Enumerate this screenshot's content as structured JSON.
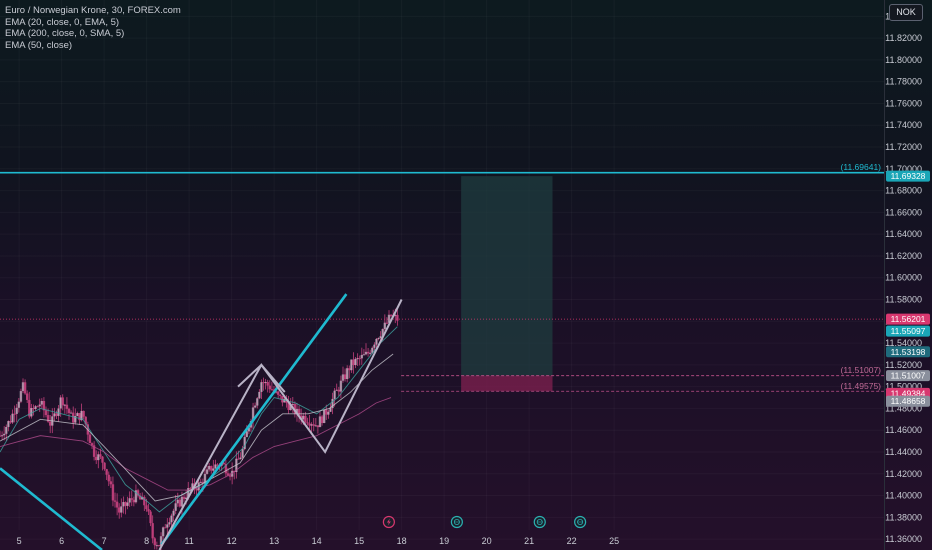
{
  "legend": {
    "title": "Euro / Norwegian Krone, 30, FOREX.com",
    "indicators": [
      "EMA (20, close, 0, EMA, 5)",
      "EMA (200, close, 0, SMA, 5)",
      "EMA (50, close)"
    ]
  },
  "currency_button": "NOK",
  "colors": {
    "candle": "#c2407c",
    "ema20": "#3fa7a3",
    "ema200": "#b04b8c",
    "ema50": "#c8c8d0",
    "drawing_line": "#1fbad0",
    "channel": "#b9b3c7",
    "target_zone": "#1f3c3f",
    "stop_zone": "#7a1f4e",
    "price_tag_pink": "#d8376f",
    "price_tag_cyan": "#1aa6b7"
  },
  "chart_data": {
    "type": "candlestick",
    "y_axis": {
      "range": [
        11.35,
        11.855
      ],
      "tick_labels": [
        "11.84000",
        "11.82000",
        "11.80000",
        "11.78000",
        "11.76000",
        "11.74000",
        "11.72000",
        "11.70000",
        "11.68000",
        "11.66000",
        "11.64000",
        "11.62000",
        "11.60000",
        "11.58000",
        "11.56000",
        "11.54000",
        "11.52000",
        "11.50000",
        "11.48000",
        "11.46000",
        "11.44000",
        "11.42000",
        "11.40000",
        "11.38000",
        "11.36000"
      ]
    },
    "x_axis": {
      "range": [
        4.55,
        25.35
      ],
      "tick_labels": [
        {
          "label": "5",
          "at": 5
        },
        {
          "label": "6",
          "at": 6
        },
        {
          "label": "7",
          "at": 7
        },
        {
          "label": "8",
          "at": 8
        },
        {
          "label": "11",
          "at": 9
        },
        {
          "label": "12",
          "at": 10
        },
        {
          "label": "13",
          "at": 11
        },
        {
          "label": "14",
          "at": 12
        },
        {
          "label": "15",
          "at": 13
        },
        {
          "label": "18",
          "at": 14
        },
        {
          "label": "19",
          "at": 15
        },
        {
          "label": "20",
          "at": 16
        },
        {
          "label": "21",
          "at": 17
        },
        {
          "label": "22",
          "at": 18
        },
        {
          "label": "25",
          "at": 19
        }
      ]
    },
    "price_path": [
      [
        4.55,
        11.455
      ],
      [
        4.8,
        11.47
      ],
      [
        5.0,
        11.49
      ],
      [
        5.1,
        11.5
      ],
      [
        5.25,
        11.475
      ],
      [
        5.5,
        11.485
      ],
      [
        5.75,
        11.465
      ],
      [
        6.0,
        11.49
      ],
      [
        6.25,
        11.47
      ],
      [
        6.5,
        11.475
      ],
      [
        6.75,
        11.44
      ],
      [
        7.0,
        11.43
      ],
      [
        7.2,
        11.4
      ],
      [
        7.35,
        11.385
      ],
      [
        7.6,
        11.395
      ],
      [
        7.75,
        11.4
      ],
      [
        8.0,
        11.39
      ],
      [
        8.15,
        11.36
      ],
      [
        8.3,
        11.355
      ],
      [
        8.45,
        11.375
      ],
      [
        8.7,
        11.39
      ],
      [
        9.0,
        11.405
      ],
      [
        9.25,
        11.41
      ],
      [
        9.5,
        11.425
      ],
      [
        9.75,
        11.43
      ],
      [
        10.0,
        11.42
      ],
      [
        10.25,
        11.44
      ],
      [
        10.5,
        11.48
      ],
      [
        10.7,
        11.505
      ],
      [
        10.9,
        11.5
      ],
      [
        11.1,
        11.49
      ],
      [
        11.3,
        11.485
      ],
      [
        11.55,
        11.475
      ],
      [
        11.8,
        11.47
      ],
      [
        12.0,
        11.465
      ],
      [
        12.2,
        11.475
      ],
      [
        12.4,
        11.49
      ],
      [
        12.6,
        11.505
      ],
      [
        12.8,
        11.52
      ],
      [
        13.0,
        11.525
      ],
      [
        13.2,
        11.53
      ],
      [
        13.4,
        11.545
      ],
      [
        13.6,
        11.555
      ],
      [
        13.75,
        11.565
      ],
      [
        13.9,
        11.562
      ]
    ],
    "series": [
      {
        "name": "EMA (20, close, 0, EMA, 5)",
        "points": [
          [
            4.55,
            11.44
          ],
          [
            5.0,
            11.47
          ],
          [
            5.5,
            11.48
          ],
          [
            6.0,
            11.475
          ],
          [
            6.5,
            11.47
          ],
          [
            7.0,
            11.44
          ],
          [
            7.5,
            11.41
          ],
          [
            8.0,
            11.395
          ],
          [
            8.3,
            11.385
          ],
          [
            8.8,
            11.4
          ],
          [
            9.3,
            11.41
          ],
          [
            9.8,
            11.425
          ],
          [
            10.3,
            11.445
          ],
          [
            10.7,
            11.475
          ],
          [
            11.0,
            11.49
          ],
          [
            11.5,
            11.485
          ],
          [
            12.0,
            11.475
          ],
          [
            12.5,
            11.49
          ],
          [
            13.0,
            11.515
          ],
          [
            13.5,
            11.54
          ],
          [
            13.9,
            11.555
          ]
        ]
      },
      {
        "name": "EMA (200, close, 0, SMA, 5)",
        "points": [
          [
            4.55,
            11.445
          ],
          [
            5.5,
            11.455
          ],
          [
            6.5,
            11.45
          ],
          [
            7.0,
            11.44
          ],
          [
            7.5,
            11.425
          ],
          [
            8.0,
            11.415
          ],
          [
            8.5,
            11.405
          ],
          [
            9.0,
            11.405
          ],
          [
            9.5,
            11.41
          ],
          [
            10.0,
            11.42
          ],
          [
            10.5,
            11.435
          ],
          [
            11.0,
            11.445
          ],
          [
            11.5,
            11.45
          ],
          [
            12.0,
            11.455
          ],
          [
            12.5,
            11.465
          ],
          [
            13.0,
            11.475
          ],
          [
            13.4,
            11.485
          ],
          [
            13.75,
            11.49
          ]
        ]
      },
      {
        "name": "EMA (50, close)",
        "points": [
          [
            4.55,
            11.45
          ],
          [
            5.5,
            11.47
          ],
          [
            6.5,
            11.465
          ],
          [
            7.0,
            11.445
          ],
          [
            7.6,
            11.42
          ],
          [
            8.2,
            11.395
          ],
          [
            8.8,
            11.4
          ],
          [
            9.5,
            11.415
          ],
          [
            10.2,
            11.43
          ],
          [
            10.7,
            11.46
          ],
          [
            11.2,
            11.475
          ],
          [
            11.8,
            11.475
          ],
          [
            12.3,
            11.48
          ],
          [
            12.8,
            11.495
          ],
          [
            13.3,
            11.515
          ],
          [
            13.8,
            11.53
          ]
        ]
      }
    ],
    "drawings": {
      "trend_lines": [
        {
          "from": [
            4.55,
            11.425
          ],
          "to": [
            6.95,
            11.35
          ]
        },
        {
          "from": [
            8.35,
            11.355
          ],
          "to": [
            12.7,
            11.585
          ]
        }
      ],
      "zigzag": [
        [
          8.3,
          11.35
        ],
        [
          10.7,
          11.52
        ],
        [
          12.2,
          11.44
        ],
        [
          14.0,
          11.58
        ]
      ],
      "zigzag_upper_start": [
        10.15,
        11.5
      ],
      "zigzag_upper_end": [
        13.75,
        11.535
      ],
      "target_zone": {
        "x": [
          15.4,
          17.55
        ],
        "y": [
          11.51007,
          11.69328
        ]
      },
      "stop_zone": {
        "x": [
          15.4,
          17.55
        ],
        "y": [
          11.49575,
          11.51007
        ]
      },
      "horizontal_levels": [
        {
          "value": 11.69641,
          "label": "(11.69641)",
          "style": "solid"
        },
        {
          "value": 11.51007,
          "label": "(11.51007)",
          "style": "dashed"
        },
        {
          "value": 11.49575,
          "label": "(11.49575)",
          "style": "dashed"
        }
      ],
      "current_price_line": 11.56201
    },
    "price_tags": [
      {
        "value": 11.69328,
        "label": "11.69328",
        "color": "#1aa6b7"
      },
      {
        "value": 11.56201,
        "label": "11.56201",
        "color": "#d8376f"
      },
      {
        "value": 11.55097,
        "label": "11.55097",
        "color": "#1aa6b7"
      },
      {
        "value": 11.53198,
        "label": "11.53198",
        "color": "#1f6b7d"
      },
      {
        "value": 11.51007,
        "label": "11.51007",
        "color": "#8a8f9c"
      },
      {
        "value": 11.49384,
        "label": "11.49384",
        "color": "#d8376f"
      },
      {
        "value": 11.48658,
        "label": "11.48658",
        "color": "#8a8f9c"
      }
    ],
    "event_markers": [
      {
        "at": 13.7,
        "icon": "lightning-icon"
      },
      {
        "at": 15.3,
        "icon": "globe-icon"
      },
      {
        "at": 17.25,
        "icon": "globe-icon"
      },
      {
        "at": 18.2,
        "icon": "globe-icon"
      }
    ]
  }
}
